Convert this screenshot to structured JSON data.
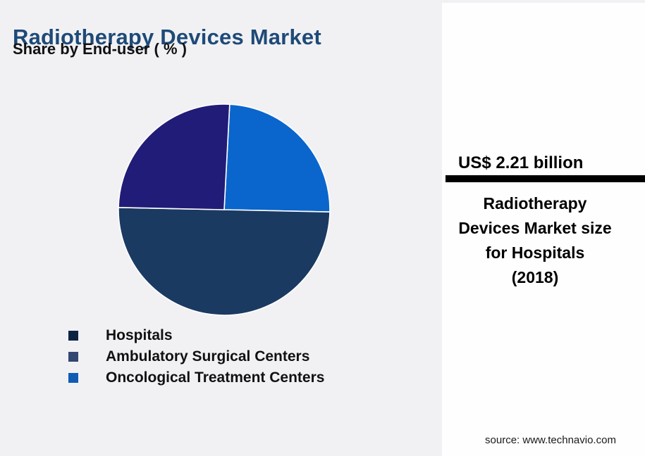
{
  "header": {
    "title": "Radiotherapy Devices Market",
    "subtitle": "Share by End-user ( % )"
  },
  "chart_data": {
    "type": "pie",
    "title": "Radiotherapy Devices Market",
    "subtitle": "Share by End-user ( % )",
    "unit": "%",
    "labels_shown": false,
    "legend_position": "bottom-left",
    "start_angle_deg": 3,
    "draw_order": [
      2,
      0,
      1
    ],
    "series": [
      {
        "name": "Hospitals",
        "value": 50,
        "slice_color": "#1B3A62",
        "legend_color": "#0E2443"
      },
      {
        "name": "Ambulatory Surgical Centers",
        "value": 25.5,
        "slice_color": "#211C78",
        "legend_color": "#334772"
      },
      {
        "name": "Oncological Treatment Centers",
        "value": 24.5,
        "slice_color": "#0A66CC",
        "legend_color": "#105CB5"
      }
    ]
  },
  "panel": {
    "headline": "US$ 2.21 billion",
    "description_lines": [
      "Radiotherapy",
      "Devices Market size",
      "for Hospitals",
      "(2018)"
    ],
    "source": "source: www.technavio.com"
  },
  "colors": {
    "background": "#F1F1F4",
    "panel_background": "#FEFEFE",
    "title_color": "#1E4A78",
    "text_color": "#111111",
    "divider_color": "#000000",
    "slice_gap_color": "#FFFFFF"
  }
}
